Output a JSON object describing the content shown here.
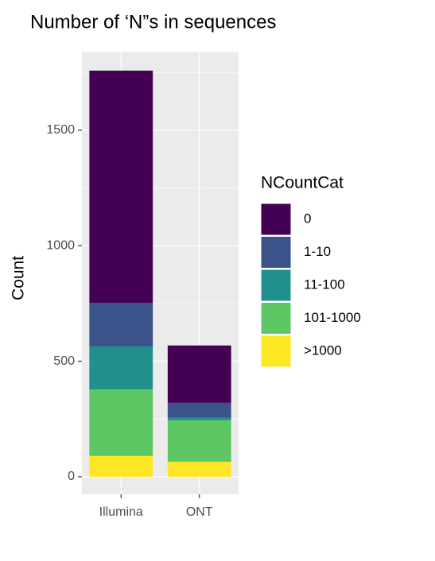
{
  "chart_data": {
    "type": "stacked_bar",
    "title": "Number of ‘N”s in sequences",
    "y_label": "Count",
    "categories": [
      "Illumina",
      "ONT"
    ],
    "legend_title": "NCountCat",
    "series": [
      {
        "name": "0",
        "color": "#440154",
        "values": [
          1005,
          248
        ]
      },
      {
        "name": "1-10",
        "color": "#3b528b",
        "values": [
          189,
          65
        ]
      },
      {
        "name": "11-100",
        "color": "#21908c",
        "values": [
          186,
          11
        ]
      },
      {
        "name": "101-1000",
        "color": "#5dc863",
        "values": [
          288,
          179
        ]
      },
      {
        "name": ">1000",
        "color": "#fde725",
        "values": [
          90,
          65
        ]
      }
    ],
    "ylim": [
      -76,
      1840
    ],
    "yticks": [
      0,
      500,
      1000,
      1500
    ],
    "grid": true,
    "legend": "right"
  }
}
